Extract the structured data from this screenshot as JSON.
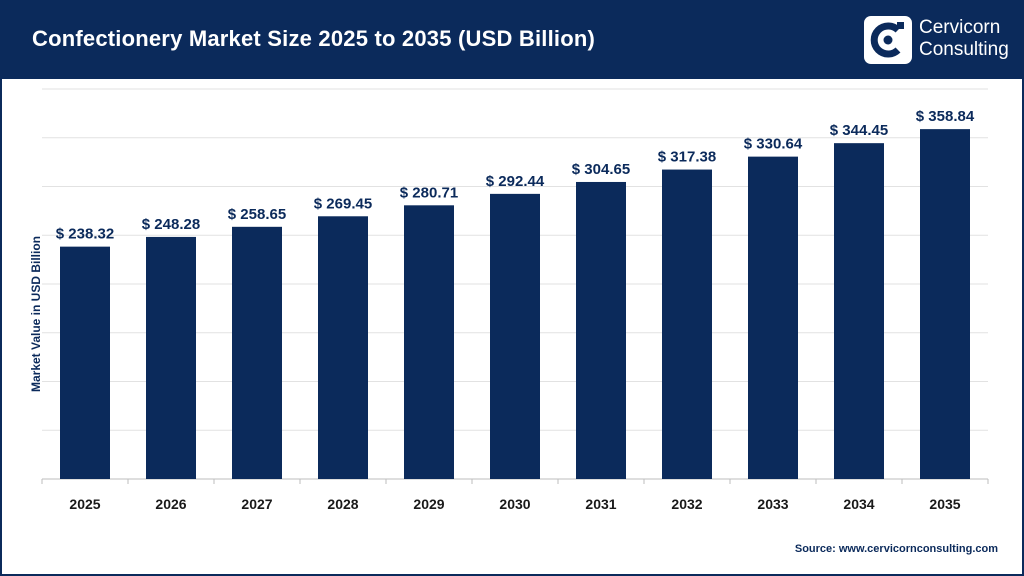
{
  "header": {
    "title": "Confectionery Market Size 2025 to 2035 (USD Billion)",
    "brand_line1": "Cervicorn",
    "brand_line2": "Consulting"
  },
  "footer": {
    "source": "Source: www.cervicornconsulting.com"
  },
  "colors": {
    "bar": "#0b2a5b",
    "header_bg": "#0b2a5b",
    "label": "#0b2a5b",
    "grid": "#e2e2e2"
  },
  "chart_data": {
    "type": "bar",
    "title": "Confectionery Market Size 2025 to 2035 (USD Billion)",
    "xlabel": "",
    "ylabel": "Market Value in USD Billion",
    "categories": [
      "2025",
      "2026",
      "2027",
      "2028",
      "2029",
      "2030",
      "2031",
      "2032",
      "2033",
      "2034",
      "2035"
    ],
    "values": [
      238.32,
      248.28,
      258.65,
      269.45,
      280.71,
      292.44,
      304.65,
      317.38,
      330.64,
      344.45,
      358.84
    ],
    "data_labels": [
      "$ 238.32",
      "$ 248.28",
      "$ 258.65",
      "$ 269.45",
      "$ 280.71",
      "$ 292.44",
      "$ 304.65",
      "$ 317.38",
      "$ 330.64",
      "$ 344.45",
      "$ 358.84"
    ],
    "ylim": [
      0,
      400
    ],
    "grid": true,
    "legend": "none"
  }
}
